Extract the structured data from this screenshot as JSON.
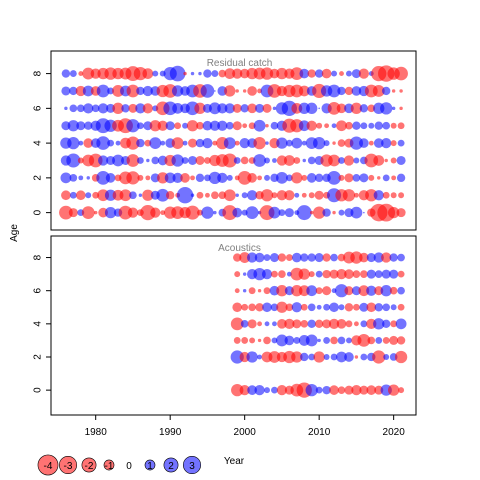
{
  "chart_data": {
    "type": "scatter",
    "subtype": "bubble-residuals",
    "xlabel": "Year",
    "ylabel": "Age",
    "x_ticks": [
      1980,
      1990,
      2000,
      2010,
      2020
    ],
    "y_ticks": [
      0,
      2,
      4,
      6,
      8
    ],
    "xlim": [
      1974,
      2023
    ],
    "ages": [
      0,
      1,
      2,
      3,
      4,
      5,
      6,
      7,
      8
    ],
    "colors": {
      "positive": "#0000ff",
      "negative": "#ff0000"
    },
    "grid": false,
    "panels": [
      {
        "title": "Residual catch",
        "years": [
          1976,
          2021
        ],
        "ylim": [
          -1,
          9.3
        ],
        "residuals": [
          [
            -1.6,
            -0.7,
            0.4,
            -1.4,
            -0.1,
            -0.8,
            1.1,
            0.6,
            -1.6,
            -0.9,
            -0.4,
            -2.0,
            -0.9,
            -0.2,
            -1.3,
            -1.4,
            -1.1,
            -1.7,
            -0.3,
            1.3,
            0.1,
            0.5,
            -1.9,
            0.8,
            0.3,
            1.4,
            0.1,
            -1.9,
            1.2,
            0.4,
            0.7,
            0.2,
            1.9,
            -0.1,
            -1.3,
            0.6,
            -0.1,
            0.3,
            0.7,
            1.2,
            0.0,
            -0.6,
            -2.6,
            -2.7,
            -1.1,
            -0.7
          ],
          [
            -0.8,
            0.4,
            -0.8,
            0.3,
            -0.4,
            -1.2,
            1.1,
            -1.0,
            -1.2,
            0.5,
            0.1,
            -1.1,
            0.7,
            1.4,
            -0.6,
            -0.2,
            2.3,
            0.1,
            -0.4,
            -0.2,
            -0.5,
            -0.5,
            -1.2,
            0.1,
            0.3,
            0.9,
            -0.6,
            -1.3,
            -0.3,
            -0.9,
            -0.9,
            0.2,
            -0.2,
            -0.3,
            -0.7,
            -0.4,
            1.7,
            -1.3,
            -1.3,
            -0.2,
            -0.9,
            -1.3,
            0.9,
            -0.4,
            -0.3,
            -0.3
          ],
          [
            1.0,
            0.5,
            0.2,
            0.1,
            -0.5,
            1.6,
            0.8,
            -0.4,
            -1.4,
            -1.5,
            -0.3,
            -0.2,
            0.7,
            -1.1,
            1.0,
            0.9,
            -0.8,
            -0.2,
            0.6,
            0.4,
            1.3,
            0.9,
            0.3,
            -0.2,
            -1.6,
            -0.8,
            -0.2,
            0.3,
            0.6,
            1.2,
            0.4,
            -1.1,
            -0.3,
            0.8,
            0.6,
            0.6,
            1.6,
            -0.3,
            -0.7,
            0.5,
            0.7,
            -0.3,
            -0.1,
            0.4,
            -0.2,
            0.6
          ],
          [
            0.9,
            1.7,
            -0.3,
            -1.2,
            -1.6,
            0.9,
            0.7,
            1.2,
            0.7,
            -1.4,
            0.4,
            0.1,
            0.5,
            0.8,
            -1.1,
            1.3,
            0.4,
            0.7,
            -0.7,
            -0.4,
            -1.1,
            -1.4,
            -1.7,
            0.4,
            -0.5,
            -0.4,
            1.4,
            0.3,
            0.2,
            -0.9,
            -1.0,
            -0.4,
            0.1,
            0.5,
            0.7,
            -1.3,
            -1.2,
            0.4,
            -0.9,
            0.3,
            0.5,
            -1.6,
            -1.0,
            -0.1,
            -0.3,
            0.7
          ],
          [
            1.1,
            1.3,
            0.2,
            -0.8,
            0.8,
            1.6,
            0.4,
            0.2,
            -1.0,
            -1.5,
            0.6,
            -0.4,
            1.2,
            0.2,
            0.8,
            -1.2,
            0.2,
            -0.7,
            0.6,
            0.9,
            -0.2,
            -1.3,
            1.2,
            -0.2,
            0.9,
            0.8,
            -1.3,
            0.1,
            -0.9,
            1.1,
            0.4,
            1.0,
            0.2,
            1.2,
            1.3,
            0.3,
            -0.1,
            -0.5,
            -0.7,
            1.5,
            0.8,
            -0.2,
            0.8,
            0.9,
            -0.3,
            0.4
          ],
          [
            0.7,
            1.1,
            0.7,
            0.6,
            0.9,
            1.9,
            1.3,
            -1.2,
            -1.9,
            1.5,
            0.4,
            0.7,
            -1.1,
            -0.9,
            0.7,
            -0.4,
            0.3,
            -1.1,
            -0.5,
            0.8,
            0.9,
            0.9,
            0.5,
            -0.7,
            -0.2,
            -0.4,
            1.2,
            -0.1,
            0.5,
            0.9,
            -1.7,
            -1.5,
            1.0,
            -0.9,
            -0.3,
            -0.2,
            0.2,
            -1.0,
            -0.5,
            0.6,
            0.4,
            0.3,
            0.6,
            0.5,
            -0.3,
            -0.4
          ],
          [
            0.1,
            0.5,
            0.5,
            0.9,
            0.5,
            0.9,
            0.7,
            -1.1,
            0.6,
            -0.7,
            0.9,
            -0.9,
            0.3,
            -1.6,
            1.6,
            1.0,
            0.8,
            1.6,
            -1.1,
            0.7,
            1.2,
            0.9,
            0.9,
            -0.7,
            0.6,
            -0.8,
            0.7,
            -0.7,
            0.1,
            1.3,
            2.0,
            -1.0,
            1.1,
            1.1,
            0.0,
            0.9,
            -1.4,
            -0.8,
            0.8,
            -1.1,
            0.6,
            -0.5,
            1.1,
            1.3,
            0.1,
            -0.1
          ],
          [
            0.7,
            0.6,
            -0.9,
            1.0,
            -0.8,
            1.4,
            0.4,
            -1.2,
            1.0,
            -1.4,
            0.6,
            0.9,
            0.8,
            -1.3,
            -1.6,
            1.1,
            0.8,
            1.4,
            -1.6,
            1.6,
            0.0,
            0.8,
            -1.1,
            -0.1,
            -0.1,
            -0.8,
            -0.2,
            1.4,
            -1.6,
            -0.9,
            -1.3,
            -1.4,
            -1.0,
            0.8,
            -1.7,
            1.1,
            1.4,
            0.6,
            -0.6,
            0.8,
            0.9,
            -1.4,
            -1.2,
            0.6,
            -0.1,
            -0.1
          ],
          [
            0.6,
            0.4,
            -0.2,
            -1.2,
            -0.9,
            -1.1,
            -1.3,
            -1.1,
            -1.2,
            -1.9,
            -1.5,
            -1.0,
            0.3,
            0.3,
            1.5,
            2.1,
            -0.1,
            0.1,
            0.1,
            0.6,
            0.4,
            -0.5,
            -1.0,
            -0.9,
            -0.8,
            -1.1,
            -1.2,
            -1.3,
            -0.8,
            -1.1,
            -0.9,
            -1.4,
            0.8,
            -0.6,
            0.6,
            -0.8,
            0.3,
            -0.2,
            0.3,
            0.7,
            -0.9,
            0.2,
            -2.0,
            -2.3,
            -1.3,
            -1.6
          ]
        ]
      },
      {
        "title": "Acoustics",
        "years": [
          1999,
          2021
        ],
        "ylim": [
          -1.5,
          9.3
        ],
        "residuals": [
          [
            -1.3,
            -0.9,
            0.8,
            0.9,
            0.3,
            0.4,
            -0.9,
            -0.7,
            -1.4,
            -2.0,
            1.3,
            0.4,
            0.6,
            -0.8,
            -0.5,
            -0.7,
            -0.9,
            -0.7,
            -0.8,
            -0.7,
            1.1,
            -1.1,
            -0.3
          ],
          [
            null,
            null,
            null,
            null,
            null,
            null,
            null,
            null,
            null,
            null,
            null,
            null,
            null,
            null,
            null,
            null,
            null,
            null,
            null,
            null,
            null,
            null,
            null
          ],
          [
            1.5,
            -0.9,
            1.1,
            0.2,
            -1.0,
            -1.2,
            -0.9,
            -1.3,
            -1.1,
            0.6,
            0.4,
            -1.1,
            0.3,
            0.4,
            1.0,
            0.8,
            -0.1,
            0.4,
            0.6,
            -1.5,
            0.3,
            0.5,
            -1.3
          ],
          [
            -0.4,
            -0.4,
            -0.3,
            -0.1,
            -0.5,
            0.3,
            1.2,
            0.8,
            0.4,
            1.0,
            1.2,
            0.1,
            0.4,
            -0.5,
            0.5,
            0.3,
            -0.9,
            -1.4,
            -0.5,
            0.4,
            -0.4,
            -0.7,
            -0.6
          ],
          [
            -1.4,
            0.5,
            -0.7,
            -0.2,
            0.2,
            0.2,
            -0.8,
            -0.9,
            -0.7,
            -0.5,
            0.6,
            -0.6,
            -0.7,
            -0.9,
            -0.8,
            -0.4,
            -0.2,
            0.4,
            -0.9,
            1.1,
            0.6,
            -0.4,
            1.0
          ],
          [
            -0.8,
            -0.4,
            -0.5,
            -0.6,
            0.8,
            0.5,
            -1.1,
            -0.5,
            0.9,
            -0.4,
            0.5,
            0.2,
            0.4,
            0.8,
            0.3,
            -0.6,
            -0.4,
            0.7,
            -0.8,
            0.6,
            0.5,
            0.3,
            -0.4
          ],
          [
            -0.2,
            0.1,
            -0.4,
            -0.1,
            -0.4,
            0.8,
            -1.1,
            0.7,
            -1.1,
            -1.0,
            1.0,
            -0.4,
            -0.7,
            0.2,
            1.5,
            -0.7,
            0.7,
            -1.0,
            0.9,
            -0.7,
            1.1,
            -0.5,
            0.5
          ],
          [
            -0.3,
            0.1,
            0.9,
            1.3,
            0.9,
            -0.4,
            -0.5,
            0.2,
            -1.4,
            -1.1,
            -0.3,
            0.4,
            -0.6,
            -0.7,
            -0.9,
            -0.8,
            -0.5,
            -0.5,
            0.7,
            0.5,
            0.7,
            0.7,
            -0.4
          ],
          [
            -0.6,
            -1.0,
            0.9,
            0.8,
            0.4,
            0.7,
            -0.6,
            -0.4,
            0.8,
            0.6,
            0.6,
            0.7,
            -0.6,
            0.5,
            -0.5,
            -1.2,
            -1.3,
            -0.8,
            0.7,
            0.9,
            -0.9,
            0.6,
            0.5
          ]
        ]
      }
    ],
    "legend": {
      "values": [
        -4,
        -3,
        -2,
        -1,
        0,
        1,
        2,
        3
      ],
      "labels": [
        "-4",
        "-3",
        "-2",
        "-1",
        "0",
        "1",
        "2",
        "3"
      ]
    }
  }
}
